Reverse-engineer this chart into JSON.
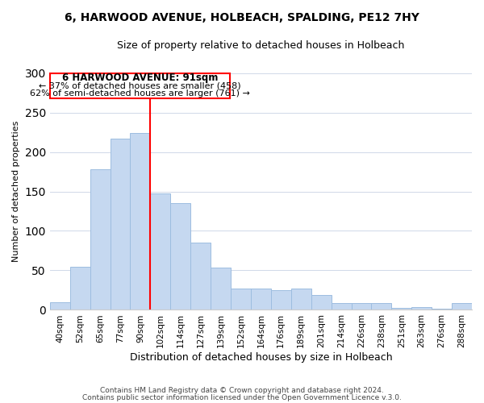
{
  "title": "6, HARWOOD AVENUE, HOLBEACH, SPALDING, PE12 7HY",
  "subtitle": "Size of property relative to detached houses in Holbeach",
  "xlabel": "Distribution of detached houses by size in Holbeach",
  "ylabel": "Number of detached properties",
  "bar_labels": [
    "40sqm",
    "52sqm",
    "65sqm",
    "77sqm",
    "90sqm",
    "102sqm",
    "114sqm",
    "127sqm",
    "139sqm",
    "152sqm",
    "164sqm",
    "176sqm",
    "189sqm",
    "201sqm",
    "214sqm",
    "226sqm",
    "238sqm",
    "251sqm",
    "263sqm",
    "276sqm",
    "288sqm"
  ],
  "bar_values": [
    10,
    55,
    178,
    217,
    224,
    147,
    135,
    85,
    54,
    27,
    27,
    25,
    27,
    19,
    9,
    9,
    9,
    2,
    4,
    1,
    9
  ],
  "bar_color": "#c5d8f0",
  "bar_edge_color": "#9dbde0",
  "marker_index": 4,
  "marker_label": "6 HARWOOD AVENUE: 91sqm",
  "annotation_line1": "← 37% of detached houses are smaller (458)",
  "annotation_line2": "62% of semi-detached houses are larger (761) →",
  "marker_color": "red",
  "box_color": "red",
  "ylim": [
    0,
    300
  ],
  "yticks": [
    0,
    50,
    100,
    150,
    200,
    250,
    300
  ],
  "footer1": "Contains HM Land Registry data © Crown copyright and database right 2024.",
  "footer2": "Contains public sector information licensed under the Open Government Licence v.3.0."
}
